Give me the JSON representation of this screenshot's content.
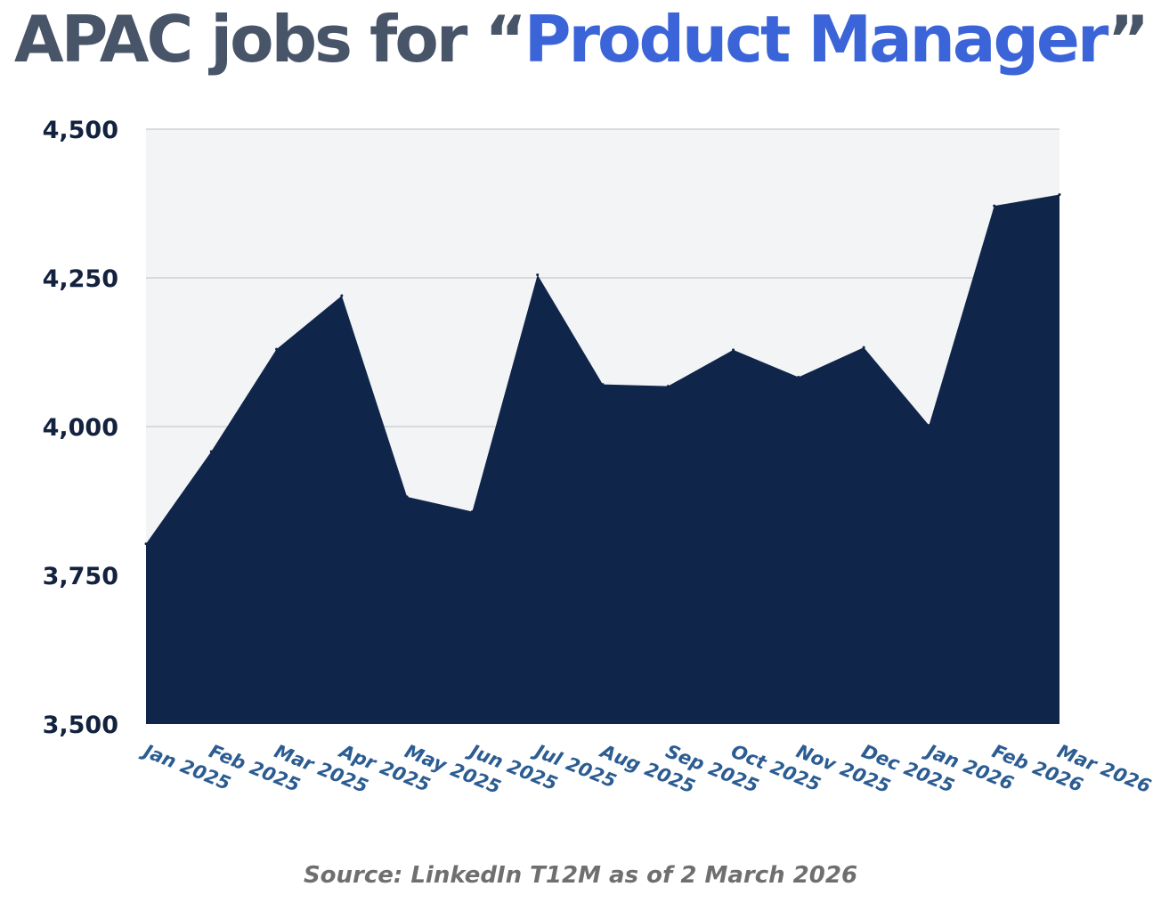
{
  "title": {
    "prefix": "APAC jobs for ",
    "open_quote": "“",
    "highlight": "Product Manager",
    "close_quote": "”"
  },
  "colors": {
    "title": "#485569",
    "highlight": "#3a64d8",
    "area_fill": "#0f254a",
    "plot_background": "#f3f4f6",
    "gridline": "#c8c9cc",
    "ytick_text": "#13223f",
    "xtick_text": "#2b5c92",
    "source_text": "#6f6f6f"
  },
  "source": "Source: LinkedIn T12M as of 2 March 2026",
  "chart_data": {
    "type": "area",
    "title": "APAC jobs for “Product Manager”",
    "xlabel": "",
    "ylabel": "",
    "ylim": [
      3500,
      4500
    ],
    "yticks": [
      3500,
      3750,
      4000,
      4250,
      4500
    ],
    "ytick_labels": [
      "3,500",
      "3,750",
      "4,000",
      "4,250",
      "4,500"
    ],
    "grid": true,
    "legend": "none",
    "categories": [
      "Jan 2025",
      "Feb 2025",
      "Mar 2025",
      "Apr 2025",
      "May 2025",
      "Jun 2025",
      "Jul 2025",
      "Aug 2025",
      "Sep 2025",
      "Oct 2025",
      "Nov 2025",
      "Dec 2025",
      "Jan 2026",
      "Feb 2026",
      "Mar 2026"
    ],
    "values": [
      3803,
      3958,
      4130,
      4220,
      3882,
      3857,
      4255,
      4071,
      4068,
      4129,
      4083,
      4133,
      4002,
      4371,
      4390
    ]
  }
}
